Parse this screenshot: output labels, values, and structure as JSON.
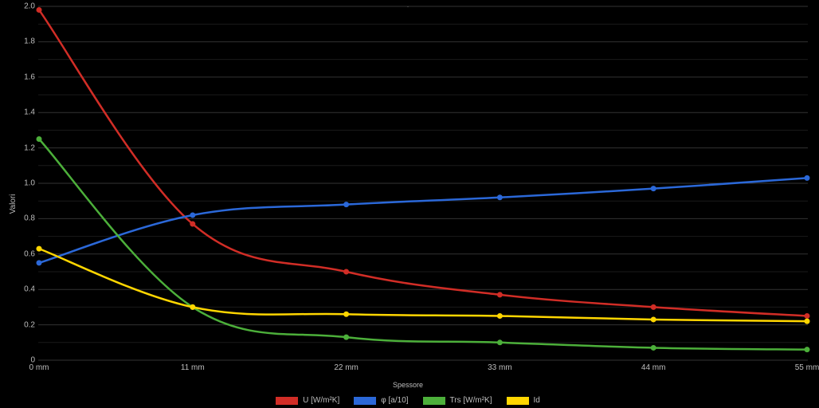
{
  "chart": {
    "type": "line",
    "background_color": "#000000",
    "grid_color": "#333333",
    "sub_grid_color": "#1a1a1a",
    "text_color": "#bdbdbd",
    "title": ".",
    "y_axis_title": "Valori",
    "x_axis_title": "Spessore",
    "y": {
      "min": 0,
      "max": 2.0,
      "tick_step": 0.2,
      "ticks": [
        0,
        0.2,
        0.4,
        0.6,
        0.8,
        1.0,
        1.2,
        1.4,
        1.6,
        1.8,
        2.0
      ]
    },
    "x": {
      "categories": [
        "0 mm",
        "11 mm",
        "22 mm",
        "33 mm",
        "44 mm",
        "55 mm"
      ]
    },
    "line_width": 2.5,
    "marker_radius": 3.5,
    "marker_style": "circle",
    "tick_fontsize": 10,
    "axis_title_fontsize": 10,
    "legend_fontsize": 10,
    "series": [
      {
        "name": "U [W/m²K]",
        "color": "#d12d26",
        "values": [
          1.98,
          0.77,
          0.5,
          0.37,
          0.3,
          0.25
        ]
      },
      {
        "name": "φ [a/10]",
        "color": "#2b68d8",
        "values": [
          0.55,
          0.82,
          0.88,
          0.92,
          0.97,
          1.03
        ]
      },
      {
        "name": "Trs [W/m²K]",
        "color": "#4caf3a",
        "values": [
          1.25,
          0.3,
          0.13,
          0.1,
          0.07,
          0.06
        ]
      },
      {
        "name": "Id",
        "color": "#ffd600",
        "values": [
          0.63,
          0.3,
          0.26,
          0.25,
          0.23,
          0.22
        ]
      }
    ]
  }
}
